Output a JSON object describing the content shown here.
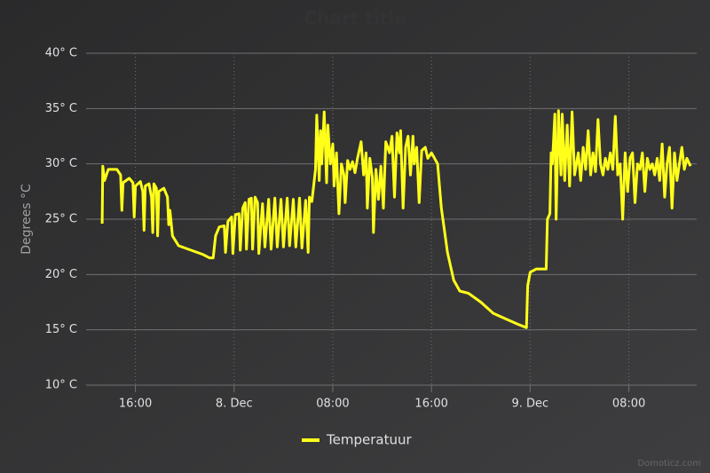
{
  "chart_data": {
    "type": "line",
    "title": "Chart title",
    "y_axis_label": "Degrees °C",
    "credits": "Domoticz.com",
    "x": [
      13.3,
      13.35,
      13.5,
      13.8,
      14.5,
      14.8,
      14.9,
      15.0,
      15.5,
      15.8,
      15.9,
      16.0,
      16.4,
      16.6,
      16.7,
      16.8,
      17.1,
      17.3,
      17.4,
      17.5,
      17.7,
      17.8,
      17.9,
      18.3,
      18.6,
      18.7,
      18.8,
      19.0,
      19.5,
      20.5,
      21.5,
      22.0,
      22.3,
      22.5,
      22.8,
      23.2,
      23.3,
      23.5,
      23.8,
      23.9,
      24.1,
      24.4,
      24.5,
      24.7,
      24.9,
      25.0,
      25.2,
      25.4,
      25.5,
      25.7,
      25.9,
      26.0,
      26.3,
      26.5,
      26.8,
      27.0,
      27.3,
      27.5,
      27.8,
      28.0,
      28.3,
      28.5,
      28.8,
      29.0,
      29.3,
      29.5,
      29.8,
      30.0,
      30.1,
      30.3,
      30.6,
      30.7,
      30.9,
      31.0,
      31.1,
      31.3,
      31.5,
      31.6,
      31.8,
      32.0,
      32.1,
      32.3,
      32.5,
      32.7,
      32.9,
      33.0,
      33.2,
      33.4,
      33.6,
      33.8,
      34.0,
      34.3,
      34.5,
      34.7,
      34.8,
      35.0,
      35.2,
      35.3,
      35.5,
      35.7,
      35.9,
      36.1,
      36.3,
      36.6,
      36.8,
      37.0,
      37.2,
      37.4,
      37.5,
      37.7,
      37.9,
      38.1,
      38.3,
      38.5,
      38.6,
      38.8,
      39.0,
      39.2,
      39.5,
      39.7,
      40.0,
      40.5,
      40.8,
      41.3,
      41.8,
      42.3,
      43.0,
      44.0,
      45.0,
      46.0,
      47.0,
      47.7,
      47.8,
      48.0,
      48.5,
      49.3,
      49.4,
      49.6,
      49.7,
      49.8,
      50.0,
      50.1,
      50.3,
      50.5,
      50.6,
      50.8,
      51.0,
      51.2,
      51.4,
      51.6,
      51.9,
      52.1,
      52.3,
      52.5,
      52.7,
      52.9,
      53.1,
      53.3,
      53.5,
      53.7,
      53.9,
      54.1,
      54.3,
      54.5,
      54.7,
      54.9,
      55.1,
      55.3,
      55.5,
      55.7,
      55.9,
      56.1,
      56.3,
      56.5,
      56.7,
      56.9,
      57.1,
      57.3,
      57.5,
      57.7,
      57.9,
      58.1,
      58.3,
      58.5,
      58.7,
      58.9,
      59.1,
      59.3,
      59.5,
      59.7,
      59.9,
      60.1,
      60.3,
      60.5,
      60.7,
      61.0
    ],
    "series": [
      {
        "name": "Temperatuur",
        "color": "#ffff1a",
        "values": [
          24.6,
          29.8,
          28.5,
          29.5,
          29.5,
          29.0,
          25.8,
          28.3,
          28.7,
          28.3,
          25.2,
          28.0,
          28.4,
          27.5,
          24.0,
          28.0,
          28.2,
          27.0,
          23.8,
          28.2,
          27.8,
          23.5,
          27.5,
          27.8,
          27.0,
          24.5,
          25.8,
          23.5,
          22.6,
          22.2,
          21.8,
          21.5,
          21.5,
          23.5,
          24.3,
          24.4,
          22.0,
          24.8,
          25.2,
          21.9,
          25.4,
          25.5,
          22.2,
          26.0,
          26.5,
          22.3,
          26.8,
          26.9,
          22.3,
          27.0,
          26.5,
          21.9,
          26.4,
          22.5,
          26.8,
          22.3,
          26.9,
          22.5,
          26.8,
          22.5,
          26.9,
          22.6,
          26.8,
          22.5,
          26.9,
          22.4,
          26.7,
          22.0,
          27.0,
          26.6,
          29.5,
          34.4,
          28.5,
          33.0,
          30.0,
          34.7,
          28.3,
          33.5,
          30.0,
          31.8,
          28.0,
          31.0,
          25.5,
          30.0,
          29.0,
          26.5,
          30.3,
          29.5,
          30.2,
          29.2,
          30.5,
          32.0,
          29.0,
          31.0,
          26.0,
          30.5,
          28.8,
          23.8,
          29.5,
          26.8,
          29.8,
          26.0,
          32.0,
          31.0,
          32.5,
          27.0,
          32.8,
          31.0,
          33.0,
          26.0,
          31.5,
          32.5,
          29.0,
          32.5,
          30.0,
          31.5,
          26.5,
          31.2,
          31.5,
          30.5,
          31.0,
          30.0,
          26.0,
          22.0,
          19.5,
          18.5,
          18.3,
          17.5,
          16.5,
          16.0,
          15.5,
          15.2,
          19.0,
          20.2,
          20.5,
          20.5,
          25.0,
          25.5,
          31.0,
          30.0,
          34.5,
          25.0,
          34.8,
          29.0,
          34.5,
          28.5,
          33.5,
          28.0,
          34.7,
          29.0,
          31.0,
          28.5,
          31.5,
          29.5,
          33.0,
          29.0,
          31.0,
          29.3,
          34.0,
          30.0,
          29.0,
          30.5,
          29.5,
          31.0,
          29.5,
          34.3,
          29.0,
          30.0,
          25.0,
          31.0,
          27.5,
          30.5,
          31.0,
          26.5,
          30.0,
          29.5,
          31.0,
          27.5,
          30.5,
          29.5,
          30.0,
          29.0,
          30.5,
          28.5,
          31.8,
          27.0,
          30.0,
          31.5,
          26.0,
          31.0,
          28.5,
          30.0,
          31.5,
          29.5,
          30.5,
          29.8
        ]
      }
    ],
    "xlim": [
      12,
      61.5
    ],
    "xticks": [
      {
        "value": 16,
        "label": "16:00"
      },
      {
        "value": 24,
        "label": "8. Dec"
      },
      {
        "value": 32,
        "label": "08:00"
      },
      {
        "value": 40,
        "label": "16:00"
      },
      {
        "value": 48,
        "label": "9. Dec"
      },
      {
        "value": 56,
        "label": "08:00"
      }
    ],
    "ylim": [
      10,
      40
    ],
    "yticks": [
      {
        "value": 10,
        "label": "10° C"
      },
      {
        "value": 15,
        "label": "15° C"
      },
      {
        "value": 20,
        "label": "20° C"
      },
      {
        "value": 25,
        "label": "25° C"
      },
      {
        "value": 30,
        "label": "30° C"
      },
      {
        "value": 35,
        "label": "35° C"
      },
      {
        "value": 40,
        "label": "40° C"
      }
    ],
    "grid": true
  }
}
